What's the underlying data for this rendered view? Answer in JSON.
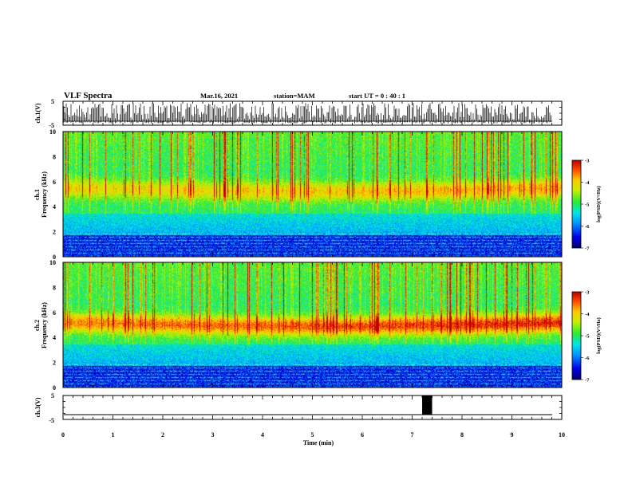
{
  "header": {
    "title": "VLF Spectra",
    "date": "Mar.16, 2021",
    "station": "station=MAM",
    "start": "start  UT =  0 : 40 : 1"
  },
  "chart_data": [
    {
      "type": "line",
      "id": "ch1v",
      "ylabel": "ch.1(V)",
      "ylim": [
        -5,
        5
      ],
      "yticks": [
        "5",
        "-5"
      ],
      "description_values": "dense voltage spikes over the full interval"
    },
    {
      "type": "heatmap",
      "id": "ch1spec",
      "ylabel_line1": "ch.1",
      "ylabel_line2": "Frequency  (kHz)",
      "ylim": [
        0,
        10
      ],
      "yticks": [
        "0",
        "2",
        "4",
        "6",
        "8",
        "10"
      ],
      "xlim": [
        0,
        10
      ],
      "colorbar": {
        "label": "log(PSD)(V²/Hz)",
        "range": [
          -7,
          -3
        ],
        "ticks": [
          "-3",
          "-4",
          "-5",
          "-6",
          "-7"
        ]
      },
      "band_center_khz": 5.5,
      "band_strength": 0.55
    },
    {
      "type": "heatmap",
      "id": "ch2spec",
      "ylabel_line1": "ch.2",
      "ylabel_line2": "Frequency  (kHz)",
      "ylim": [
        0,
        10
      ],
      "yticks": [
        "0",
        "2",
        "4",
        "6",
        "8",
        "10"
      ],
      "xlim": [
        0,
        10
      ],
      "colorbar": {
        "label": "log(PSD)(V²/Hz)",
        "range": [
          -7,
          -3
        ],
        "ticks": [
          "-3",
          "-4",
          "-5",
          "-6",
          "-7"
        ]
      },
      "band_center_khz": 5.2,
      "band_strength": 0.85
    },
    {
      "type": "line",
      "id": "ch3v",
      "ylabel": "ch.3(V)",
      "ylim": [
        -5,
        5
      ],
      "yticks": [
        "5",
        "-5"
      ],
      "xlabel": "Time  (min)",
      "xlim": [
        0,
        10
      ],
      "xticks": [
        "0",
        "1",
        "2",
        "3",
        "4",
        "5",
        "6",
        "7",
        "8",
        "9",
        "10"
      ],
      "baseline_v": -3,
      "pulse_t_min": [
        7.2,
        7.4
      ]
    }
  ],
  "colors": {
    "frame": "#000000"
  }
}
